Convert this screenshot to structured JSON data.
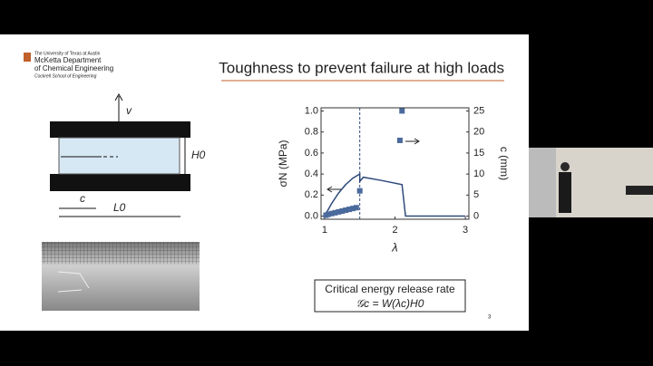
{
  "slide": {
    "logo": [
      "The University of Texas at Austin",
      "McKetta Department",
      "of Chemical Engineering",
      "Cockrell School of Engineering"
    ],
    "title": "Toughness to prevent failure at high loads",
    "diagram": {
      "v": "v",
      "height": "H0",
      "crack": "c",
      "length": "L0"
    },
    "box": [
      "Critical energy release rate",
      "𝒢c = W(λc)H0"
    ],
    "page_number": "3"
  },
  "chart_data": {
    "type": "line",
    "xlabel": "λ",
    "ylabel": "σN (MPa)",
    "y2label": "c (mm)",
    "xlim": [
      0.95,
      3.05
    ],
    "xticks": [
      1,
      2,
      3
    ],
    "ylim": [
      -0.03,
      1.03
    ],
    "yticks": [
      {
        "value": 0,
        "label": "0.0"
      },
      {
        "value": 0.2,
        "label": "0.2"
      },
      {
        "value": 0.4,
        "label": "0.4"
      },
      {
        "value": 0.6,
        "label": "0.6"
      },
      {
        "value": 0.8,
        "label": "0.8"
      },
      {
        "value": 1.0,
        "label": "1.0"
      }
    ],
    "y2lim": [
      -0.75,
      25.75
    ],
    "y2ticks": [
      0,
      5,
      10,
      15,
      20,
      25
    ],
    "critical_x": 1.5,
    "series": [
      {
        "kind": "line",
        "color": "#2f4a7a",
        "x": [
          1,
          1.1,
          1.2,
          1.3,
          1.4,
          1.5,
          1.5,
          1.55,
          1.8,
          2.1,
          2.15,
          3
        ],
        "values": [
          0,
          0.12,
          0.22,
          0.3,
          0.36,
          0.4,
          0.33,
          0.37,
          0.34,
          0.3,
          0,
          0
        ]
      },
      {
        "kind": "scatter",
        "axis": "y2",
        "color": "#4a6a9c",
        "x": [
          1.02,
          1.05,
          1.1,
          1.15,
          1.2,
          1.25,
          1.3,
          1.35,
          1.4,
          1.45,
          1.5,
          2.07,
          2.1
        ],
        "values": [
          0.2,
          0.4,
          0.6,
          0.8,
          1,
          1.2,
          1.4,
          1.6,
          1.8,
          2,
          6,
          18,
          25
        ]
      }
    ]
  }
}
